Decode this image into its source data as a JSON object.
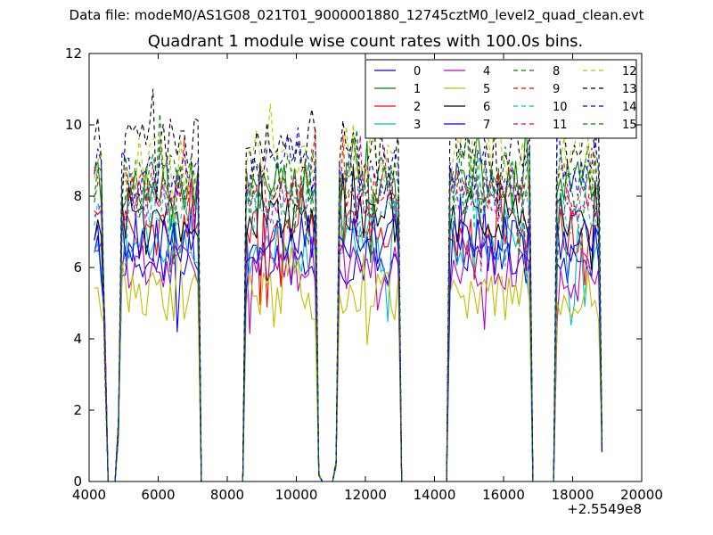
{
  "figure": {
    "suptitle": "Data file: modeM0/AS1G08_021T01_9000001880_12745cztM0_level2_quad_clean.evt",
    "x_offset_label": "+2.5549e8"
  },
  "chart_data": {
    "type": "line",
    "title": "Quadrant 1 module wise count rates with 100.0s bins.",
    "xlabel": "",
    "ylabel": "",
    "xlim": [
      4000,
      20000
    ],
    "ylim": [
      0,
      12
    ],
    "xticks": [
      4000,
      6000,
      8000,
      10000,
      12000,
      14000,
      16000,
      18000,
      20000
    ],
    "yticks": [
      0,
      2,
      4,
      6,
      8,
      10,
      12
    ],
    "grid": false,
    "legend": "top-right, 4 columns",
    "x_offset": 255490000,
    "segments": [
      {
        "x0": 4150,
        "x1": 4350
      },
      {
        "x0": 4950,
        "x1": 7150
      },
      {
        "x0": 8550,
        "x1": 10550
      },
      {
        "x0": 11250,
        "x1": 12950
      },
      {
        "x0": 14450,
        "x1": 16750
      },
      {
        "x0": 17550,
        "x1": 18750
      }
    ],
    "gap_points": [
      {
        "x": 4450,
        "y": 4.0
      },
      {
        "x": 4550,
        "y": 0
      },
      {
        "x": 4750,
        "y": 0
      },
      {
        "x": 4850,
        "y": 1.5
      },
      {
        "x": 7250,
        "y": 0
      },
      {
        "x": 8450,
        "y": 0
      },
      {
        "x": 10650,
        "y": 0.2
      },
      {
        "x": 10750,
        "y": 0
      },
      {
        "x": 11050,
        "y": 0
      },
      {
        "x": 11150,
        "y": 0.5
      },
      {
        "x": 13050,
        "y": 0
      },
      {
        "x": 14350,
        "y": 0
      },
      {
        "x": 16850,
        "y": 0
      },
      {
        "x": 17450,
        "y": 0
      },
      {
        "x": 18850,
        "y": 1.0
      }
    ],
    "series": [
      {
        "name": "0",
        "color": "#0000ff",
        "dash": "solid",
        "level": 6.2
      },
      {
        "name": "1",
        "color": "#008000",
        "dash": "solid",
        "level": 8.3
      },
      {
        "name": "2",
        "color": "#ff0000",
        "dash": "solid",
        "level": 7.0
      },
      {
        "name": "3",
        "color": "#00bfbf",
        "dash": "solid",
        "level": 6.5
      },
      {
        "name": "4",
        "color": "#bf00bf",
        "dash": "solid",
        "level": 6.0
      },
      {
        "name": "5",
        "color": "#bfbf00",
        "dash": "solid",
        "level": 5.2
      },
      {
        "name": "6",
        "color": "#000000",
        "dash": "solid",
        "level": 7.4
      },
      {
        "name": "7",
        "color": "#0000ff",
        "dash": "solid",
        "level": 6.8
      },
      {
        "name": "8",
        "color": "#008000",
        "dash": "dashed",
        "level": 8.0
      },
      {
        "name": "9",
        "color": "#ff0000",
        "dash": "dashed",
        "level": 8.3
      },
      {
        "name": "10",
        "color": "#00bfbf",
        "dash": "dashed",
        "level": 7.6
      },
      {
        "name": "11",
        "color": "#bf00bf",
        "dash": "dashed",
        "level": 7.9
      },
      {
        "name": "12",
        "color": "#bfbf00",
        "dash": "dashed",
        "level": 9.0
      },
      {
        "name": "13",
        "color": "#000000",
        "dash": "dashed",
        "level": 9.5
      },
      {
        "name": "14",
        "color": "#0000ff",
        "dash": "dashed",
        "level": 8.7
      },
      {
        "name": "15",
        "color": "#008000",
        "dash": "dashed",
        "level": 8.5
      }
    ]
  }
}
